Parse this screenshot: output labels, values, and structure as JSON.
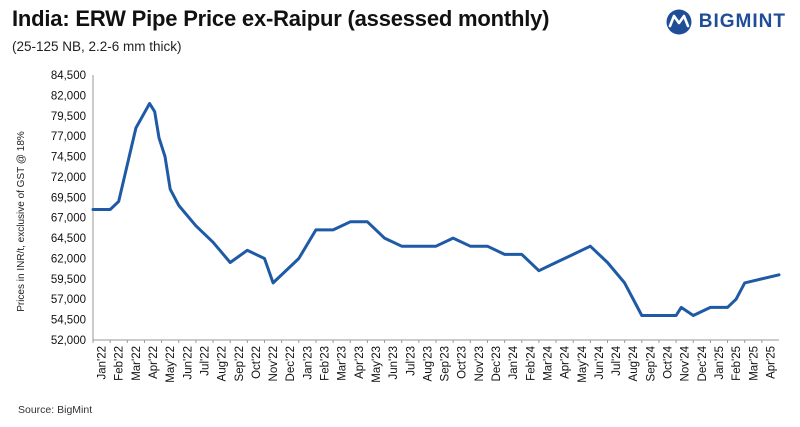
{
  "brand": {
    "logo_text": "BIGMINT",
    "logo_icon": "bigmint-logo-icon",
    "color": "#1f4e96"
  },
  "source": "Source: BigMint",
  "chart_data": {
    "type": "line",
    "title": "India: ERW Pipe Price ex-Raipur (assessed monthly)",
    "subtitle": "(25-125 NB, 2.2-6 mm thick)",
    "xlabel": "",
    "ylabel": "Prices in INR/t, exclusive of GST @ 18%",
    "ylim": [
      52000,
      84500
    ],
    "yticks": [
      52000,
      54500,
      57000,
      59500,
      62000,
      64500,
      67000,
      69500,
      72000,
      74500,
      77000,
      79500,
      82000,
      84500
    ],
    "ytick_labels": [
      "52,000",
      "54,500",
      "57,000",
      "59,500",
      "62,000",
      "64,500",
      "67,000",
      "69,500",
      "72,000",
      "74,500",
      "77,000",
      "79,500",
      "82,000",
      "84,500"
    ],
    "categories": [
      "Jan'22",
      "Feb'22",
      "Mar'22",
      "Apr'22",
      "May'22",
      "Jun'22",
      "Jul'22",
      "Aug'22",
      "Sep'22",
      "Oct'22",
      "Nov'22",
      "Dec'22",
      "Jan'23",
      "Feb'23",
      "Mar'23",
      "Apr'23",
      "May'23",
      "Jun'23",
      "Jul'23",
      "Aug'23",
      "Sep'23",
      "Oct'23",
      "Nov'23",
      "Dec'23",
      "Jan'24",
      "Feb'24",
      "Mar'24",
      "Apr'24",
      "May'24",
      "Jun'24",
      "Jul'24",
      "Aug'24",
      "Sep'24",
      "Oct'24",
      "Nov'24",
      "Dec'24",
      "Jan'25",
      "Feb'25",
      "Mar'25",
      "Apr'25"
    ],
    "grid": false,
    "legend": "none",
    "series": [
      {
        "color": "#1f5aa6",
        "points": [
          {
            "x": 0,
            "y": 68000
          },
          {
            "x": 1,
            "y": 68000
          },
          {
            "x": 1.5,
            "y": 69000
          },
          {
            "x": 2.5,
            "y": 78000
          },
          {
            "x": 3.3,
            "y": 81000
          },
          {
            "x": 3.6,
            "y": 80000
          },
          {
            "x": 3.85,
            "y": 76800
          },
          {
            "x": 4.2,
            "y": 74500
          },
          {
            "x": 4.5,
            "y": 70500
          },
          {
            "x": 5,
            "y": 68500
          },
          {
            "x": 6,
            "y": 66000
          },
          {
            "x": 7,
            "y": 64000
          },
          {
            "x": 8,
            "y": 61500
          },
          {
            "x": 9,
            "y": 63000
          },
          {
            "x": 10,
            "y": 62000
          },
          {
            "x": 10.5,
            "y": 59000
          },
          {
            "x": 12,
            "y": 62000
          },
          {
            "x": 13,
            "y": 65500
          },
          {
            "x": 14,
            "y": 65500
          },
          {
            "x": 15,
            "y": 66500
          },
          {
            "x": 16,
            "y": 66500
          },
          {
            "x": 17,
            "y": 64500
          },
          {
            "x": 18,
            "y": 63500
          },
          {
            "x": 19,
            "y": 63500
          },
          {
            "x": 20,
            "y": 63500
          },
          {
            "x": 21,
            "y": 64500
          },
          {
            "x": 22,
            "y": 63500
          },
          {
            "x": 23,
            "y": 63500
          },
          {
            "x": 24,
            "y": 62500
          },
          {
            "x": 25,
            "y": 62500
          },
          {
            "x": 26,
            "y": 60500
          },
          {
            "x": 27,
            "y": 61500
          },
          {
            "x": 28,
            "y": 62500
          },
          {
            "x": 29,
            "y": 63500
          },
          {
            "x": 30,
            "y": 61500
          },
          {
            "x": 31,
            "y": 59000
          },
          {
            "x": 32,
            "y": 55000
          },
          {
            "x": 33,
            "y": 55000
          },
          {
            "x": 34,
            "y": 55000
          },
          {
            "x": 34.3,
            "y": 56000
          },
          {
            "x": 35,
            "y": 55000
          },
          {
            "x": 36,
            "y": 56000
          },
          {
            "x": 37,
            "y": 56000
          },
          {
            "x": 37.5,
            "y": 57000
          },
          {
            "x": 38,
            "y": 59000
          },
          {
            "x": 40,
            "y": 60000
          }
        ]
      }
    ]
  }
}
